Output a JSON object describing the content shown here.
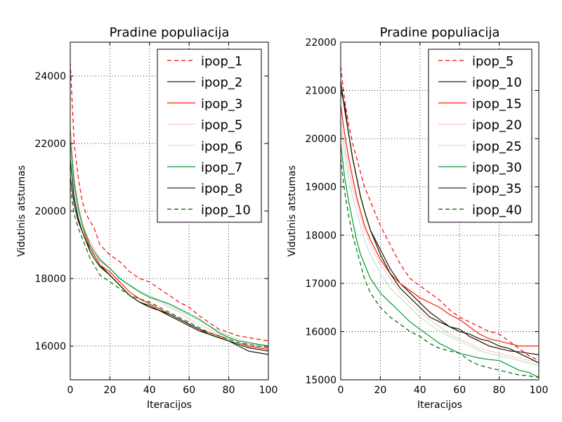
{
  "chart_data": [
    {
      "type": "line",
      "title": "Pradine populiacija",
      "xlabel": "Iteracijos",
      "ylabel": "Vidutinis atstumas",
      "xlim": [
        0,
        100
      ],
      "ylim": [
        15000,
        25000
      ],
      "xticks": [
        "0",
        "20",
        "40",
        "60",
        "80",
        "100"
      ],
      "yticks": [
        "16000",
        "18000",
        "20000",
        "22000",
        "24000"
      ],
      "grid": true,
      "legend_position": "top-right",
      "x": [
        0,
        2,
        4,
        6,
        8,
        10,
        12,
        15,
        20,
        25,
        30,
        35,
        40,
        45,
        50,
        55,
        60,
        65,
        70,
        75,
        80,
        85,
        90,
        95,
        100
      ],
      "series": [
        {
          "name": "ipop_1",
          "color": "#ff0000",
          "dash": true,
          "values": [
            24400,
            22000,
            21000,
            20300,
            19900,
            19700,
            19500,
            19000,
            18700,
            18500,
            18200,
            18000,
            17900,
            17700,
            17500,
            17300,
            17150,
            16900,
            16700,
            16500,
            16400,
            16300,
            16250,
            16200,
            16150
          ]
        },
        {
          "name": "ipop_2",
          "color": "#3a0000",
          "dash": false,
          "values": [
            21000,
            20200,
            19700,
            19400,
            19100,
            18900,
            18700,
            18400,
            18100,
            17800,
            17500,
            17300,
            17150,
            17050,
            16900,
            16750,
            16600,
            16450,
            16350,
            16250,
            16150,
            16050,
            15950,
            15900,
            15850
          ]
        },
        {
          "name": "ipop_3",
          "color": "#ff1a00",
          "dash": false,
          "values": [
            22400,
            21000,
            20100,
            19600,
            19200,
            18900,
            18700,
            18400,
            18200,
            17900,
            17600,
            17400,
            17250,
            17100,
            16950,
            16800,
            16650,
            16500,
            16400,
            16300,
            16200,
            16100,
            16000,
            15950,
            15900
          ]
        },
        {
          "name": "ipop_5",
          "color": "#ffc8c8",
          "dash": false,
          "values": [
            22300,
            21000,
            20200,
            19700,
            19300,
            19100,
            18900,
            18600,
            18300,
            18000,
            17800,
            17600,
            17450,
            17300,
            17150,
            17000,
            16800,
            16650,
            16500,
            16350,
            16200,
            16100,
            16050,
            16000,
            15950
          ]
        },
        {
          "name": "ipop_6",
          "color": "#b8e6d4",
          "dash": false,
          "values": [
            21800,
            20700,
            20000,
            19600,
            19300,
            19000,
            18800,
            18500,
            18300,
            18000,
            17800,
            17650,
            17500,
            17350,
            17200,
            17050,
            16900,
            16750,
            16600,
            16450,
            16300,
            16200,
            16100,
            16050,
            16000
          ]
        },
        {
          "name": "ipop_7",
          "color": "#009933",
          "dash": false,
          "values": [
            22100,
            20800,
            20100,
            19600,
            19300,
            19000,
            18800,
            18550,
            18300,
            18000,
            17800,
            17600,
            17450,
            17350,
            17250,
            17100,
            16950,
            16800,
            16600,
            16400,
            16250,
            16150,
            16100,
            16050,
            16000
          ]
        },
        {
          "name": "ipop_8",
          "color": "#002200",
          "dash": false,
          "values": [
            21500,
            20400,
            19800,
            19400,
            19100,
            18800,
            18600,
            18350,
            18100,
            17800,
            17500,
            17300,
            17200,
            17050,
            16950,
            16800,
            16650,
            16500,
            16350,
            16250,
            16150,
            16000,
            15850,
            15800,
            15750
          ]
        },
        {
          "name": "ipop_10",
          "color": "#006600",
          "dash": true,
          "values": [
            20700,
            19900,
            19500,
            19200,
            18900,
            18600,
            18400,
            18100,
            17900,
            17700,
            17500,
            17400,
            17300,
            17150,
            17000,
            16850,
            16700,
            16550,
            16400,
            16300,
            16200,
            16100,
            16050,
            16000,
            15950
          ]
        }
      ]
    },
    {
      "type": "line",
      "title": "Pradine populiacija",
      "xlabel": "Iteracijos",
      "ylabel": "Vidutinis atstumas",
      "xlim": [
        0,
        100
      ],
      "ylim": [
        15000,
        22000
      ],
      "xticks": [
        "0",
        "20",
        "40",
        "60",
        "80",
        "100"
      ],
      "yticks": [
        "15000",
        "16000",
        "17000",
        "18000",
        "19000",
        "20000",
        "21000",
        "22000"
      ],
      "grid": true,
      "legend_position": "top-right",
      "x": [
        0,
        2,
        4,
        6,
        8,
        10,
        12,
        15,
        20,
        25,
        30,
        35,
        40,
        45,
        50,
        55,
        60,
        65,
        70,
        75,
        80,
        85,
        90,
        95,
        100
      ],
      "series": [
        {
          "name": "ipop_5",
          "color": "#ff0000",
          "dash": true,
          "values": [
            21500,
            20800,
            20300,
            19900,
            19600,
            19300,
            19000,
            18700,
            18200,
            17800,
            17400,
            17100,
            16950,
            16800,
            16650,
            16450,
            16300,
            16200,
            16100,
            16000,
            15950,
            15800,
            15650,
            15500,
            15400
          ]
        },
        {
          "name": "ipop_10",
          "color": "#3a0000",
          "dash": false,
          "values": [
            21000,
            20700,
            20100,
            19600,
            19200,
            18800,
            18500,
            18100,
            17700,
            17300,
            17000,
            16800,
            16600,
            16400,
            16250,
            16100,
            16050,
            15900,
            15800,
            15700,
            15650,
            15600,
            15580,
            15550,
            15520
          ]
        },
        {
          "name": "ipop_15",
          "color": "#ff1a00",
          "dash": false,
          "values": [
            20700,
            20100,
            19600,
            19200,
            18800,
            18500,
            18200,
            17900,
            17500,
            17200,
            17000,
            16850,
            16700,
            16600,
            16500,
            16350,
            16250,
            16100,
            15950,
            15850,
            15800,
            15750,
            15700,
            15700,
            15700
          ]
        },
        {
          "name": "ipop_20",
          "color": "#ffc8c8",
          "dash": false,
          "values": [
            20400,
            19900,
            19400,
            19000,
            18700,
            18400,
            18100,
            17800,
            17400,
            17100,
            16800,
            16600,
            16400,
            16250,
            16100,
            15950,
            15850,
            15750,
            15650,
            15600,
            15550,
            15500,
            15450,
            15400,
            15380
          ]
        },
        {
          "name": "ipop_25",
          "color": "#b8e6d4",
          "dash": false,
          "values": [
            20200,
            19700,
            19200,
            18800,
            18500,
            18200,
            17900,
            17600,
            17200,
            16900,
            16700,
            16500,
            16300,
            16150,
            16000,
            15900,
            15800,
            15700,
            15600,
            15550,
            15500,
            15450,
            15400,
            15350,
            15300
          ]
        },
        {
          "name": "ipop_30",
          "color": "#009933",
          "dash": false,
          "values": [
            19900,
            19200,
            18700,
            18300,
            17900,
            17600,
            17400,
            17100,
            16800,
            16600,
            16400,
            16200,
            16050,
            15900,
            15750,
            15650,
            15550,
            15500,
            15450,
            15420,
            15400,
            15300,
            15200,
            15150,
            15050
          ]
        },
        {
          "name": "ipop_35",
          "color": "#002200",
          "dash": false,
          "values": [
            21200,
            20600,
            20100,
            19600,
            19200,
            18800,
            18500,
            18100,
            17600,
            17200,
            16900,
            16700,
            16500,
            16300,
            16200,
            16100,
            16000,
            15950,
            15850,
            15800,
            15700,
            15650,
            15550,
            15450,
            15350
          ]
        },
        {
          "name": "ipop_40",
          "color": "#006600",
          "dash": true,
          "values": [
            19600,
            18900,
            18400,
            18000,
            17700,
            17400,
            17100,
            16800,
            16500,
            16300,
            16150,
            16000,
            15900,
            15750,
            15650,
            15600,
            15550,
            15400,
            15300,
            15250,
            15200,
            15150,
            15100,
            15080,
            15050
          ]
        }
      ]
    }
  ]
}
